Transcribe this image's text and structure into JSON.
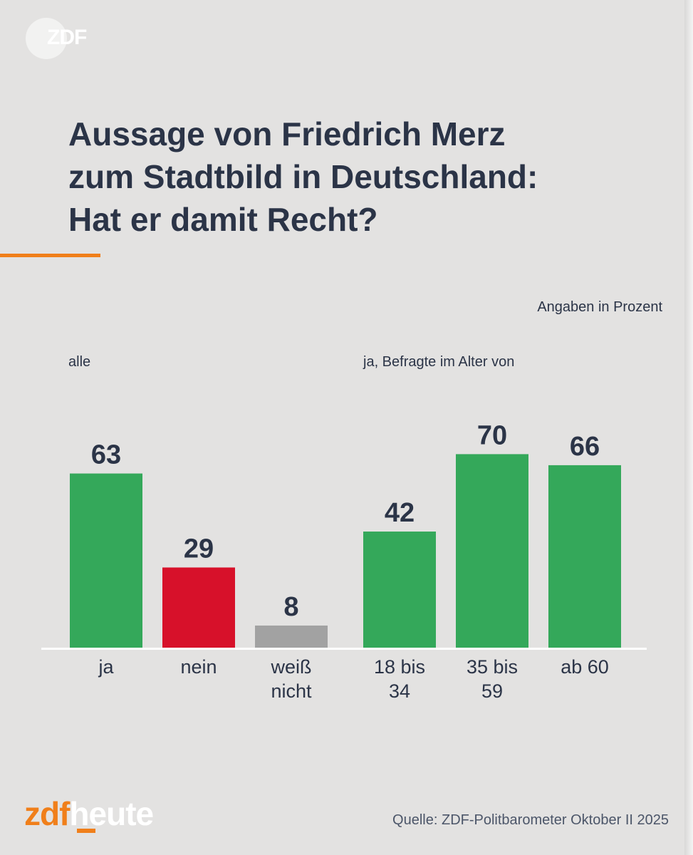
{
  "header": {
    "logo_text": "ZDF",
    "title": "Aussage von Friedrich Merz\nzum Stadtbild in Deutschland:\nHat er damit Recht?",
    "accent_color": "#f07f1a"
  },
  "unit_note": "Angaben in Prozent",
  "groups": [
    {
      "label": "alle"
    },
    {
      "label": "ja, Befragte im Alter von"
    }
  ],
  "chart_data": {
    "type": "bar",
    "ylim": [
      0,
      100
    ],
    "grid": false,
    "groups": [
      {
        "label": "alle",
        "bars": [
          {
            "category": [
              "ja"
            ],
            "value": 63,
            "color": "#34a85a"
          },
          {
            "category": [
              "nein"
            ],
            "value": 29,
            "color": "#d7112a"
          },
          {
            "category": [
              "weiß",
              "nicht"
            ],
            "value": 8,
            "color": "#a2a2a2"
          }
        ]
      },
      {
        "label": "ja, Befragte im Alter von",
        "bars": [
          {
            "category": [
              "18 bis",
              "34"
            ],
            "value": 42,
            "color": "#34a85a"
          },
          {
            "category": [
              "35 bis",
              "59"
            ],
            "value": 70,
            "color": "#34a85a"
          },
          {
            "category": [
              "ab 60"
            ],
            "value": 66,
            "color": "#34a85a"
          }
        ]
      }
    ]
  },
  "footer": {
    "brand_zdf": "zdf",
    "brand_heute": "heute",
    "source": "Quelle: ZDF-Politbarometer Oktober II 2025"
  }
}
